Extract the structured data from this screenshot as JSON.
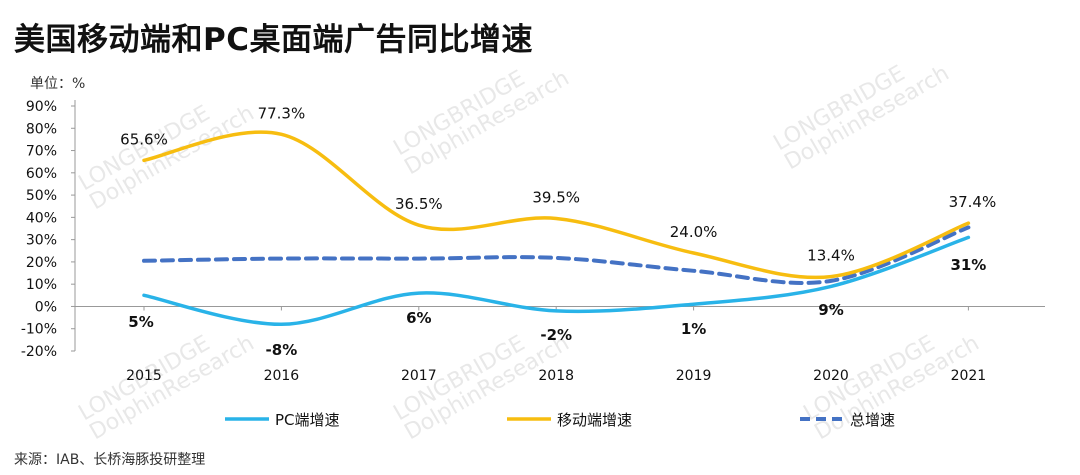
{
  "title": "美国移动端和PC桌面端广告同比增速",
  "unit_label": "单位：%",
  "source": "来源：IAB、长桥海豚投研整理",
  "watermark": {
    "top": "LONGBRIDGE",
    "bottom": "DolphinResearch"
  },
  "chart_data": {
    "type": "line",
    "categories": [
      "2015",
      "2016",
      "2017",
      "2018",
      "2019",
      "2020",
      "2021"
    ],
    "ylim": [
      -20,
      90
    ],
    "yticks": [
      "90%",
      "80%",
      "70%",
      "60%",
      "50%",
      "40%",
      "30%",
      "20%",
      "10%",
      "0%",
      "-10%",
      "-20%"
    ],
    "ytick_values": [
      90,
      80,
      70,
      60,
      50,
      40,
      30,
      20,
      10,
      0,
      -10,
      -20
    ],
    "grid": false,
    "legend": "bottom",
    "series": [
      {
        "name": "PC端增速",
        "values": [
          5,
          -8,
          6,
          -2,
          1,
          9,
          31
        ],
        "labels": [
          "5%",
          "-8%",
          "6%",
          "-2%",
          "1%",
          "9%",
          "31%"
        ],
        "color": "#29b3e8",
        "style": "solid"
      },
      {
        "name": "移动端增速",
        "values": [
          65.6,
          77.3,
          36.5,
          39.5,
          24.0,
          13.4,
          37.4
        ],
        "labels": [
          "65.6%",
          "77.3%",
          "36.5%",
          "39.5%",
          "24.0%",
          "13.4%",
          "37.4%"
        ],
        "color": "#f7bd10",
        "style": "solid"
      },
      {
        "name": "总增速",
        "values": [
          20.5,
          21.5,
          21.5,
          21.8,
          16.0,
          11.5,
          35.5
        ],
        "color": "#4472c4",
        "style": "dashed"
      }
    ]
  }
}
